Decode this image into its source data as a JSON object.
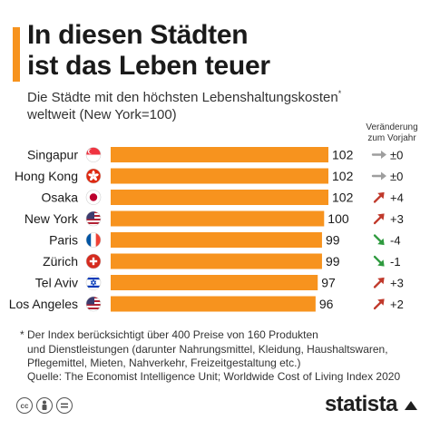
{
  "title_line1": "In diesen Städten",
  "title_line2": "ist das Leben teuer",
  "subtitle_main": "Die Städte mit den höchsten Lebenshaltungskosten",
  "subtitle_mark": "*",
  "subtitle_line2": "weltweit (New York=100)",
  "change_header_line1": "Veränderung",
  "change_header_line2": "zum Vorjahr",
  "footnote_line1": "* Der Index berücksichtigt über 400 Preise von 160 Produkten",
  "footnote_line2": "und Dienstleistungen (darunter Nahrungsmittel, Kleidung, Haushaltswaren,",
  "footnote_line3": "Pflegemittel, Mieten, Nahverkehr, Freizeitgestaltung etc.)",
  "source": "Quelle: The Economist Intelligence Unit; Worldwide Cost of Living Index 2020",
  "brand": "statista",
  "colors": {
    "bar": "#f7931e",
    "up": "#c0392b",
    "down": "#2e9a3e",
    "neutral": "#9e9e9e"
  },
  "chart_data": {
    "type": "bar",
    "orientation": "horizontal",
    "categories": [
      "Singapur",
      "Hong Kong",
      "Osaka",
      "New York",
      "Paris",
      "Zürich",
      "Tel Aviv",
      "Los Angeles"
    ],
    "values": [
      102,
      102,
      102,
      100,
      99,
      99,
      97,
      96
    ],
    "value_labels": [
      "102",
      "102",
      "102",
      "100",
      "99",
      "99",
      "97",
      "96"
    ],
    "changes": [
      "±0",
      "±0",
      "+4",
      "+3",
      "-4",
      "-1",
      "+3",
      "+2"
    ],
    "change_direction": [
      "neutral",
      "neutral",
      "up",
      "up",
      "down",
      "down",
      "up",
      "up"
    ],
    "flags": [
      "singapore-flag",
      "hong-kong-flag",
      "japan-flag",
      "usa-flag",
      "france-flag",
      "switzerland-flag",
      "israel-flag",
      "usa-flag"
    ]
  }
}
